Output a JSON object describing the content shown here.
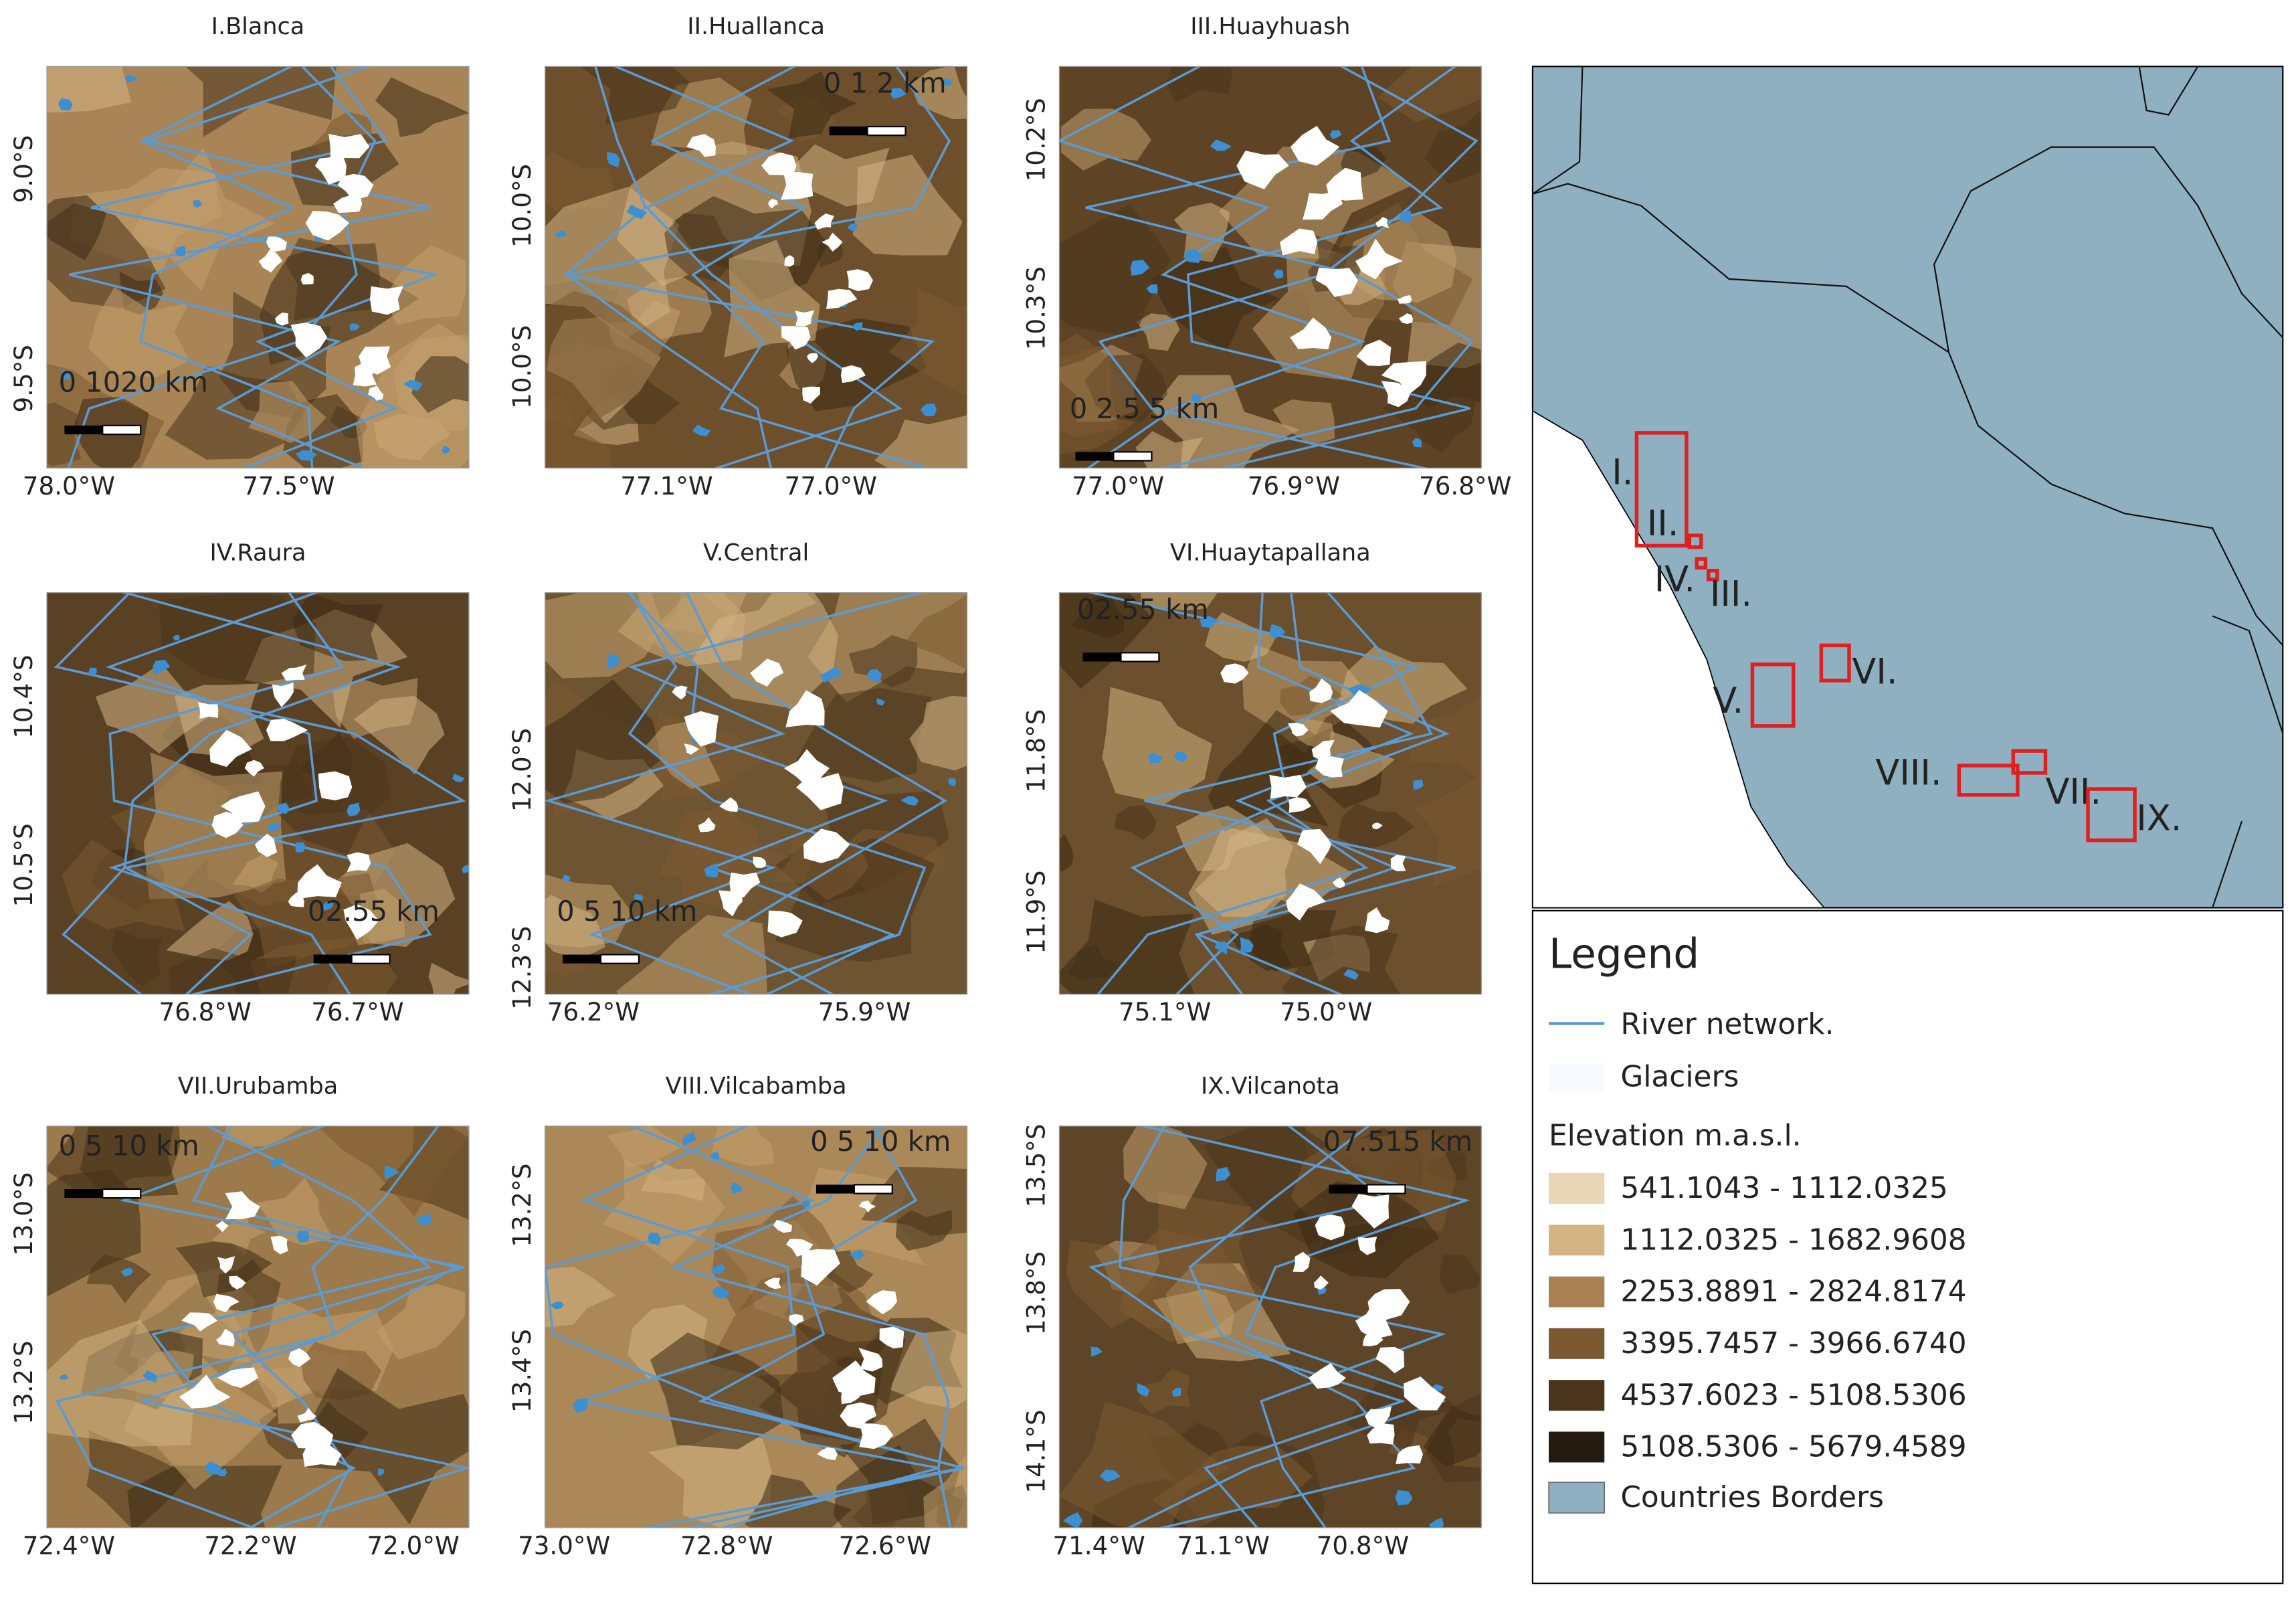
{
  "panels": [
    {
      "title": "I.Blanca",
      "lat_labels": [
        "9.0°S",
        "9.5°S"
      ],
      "lon_labels": [
        "78.0°W",
        "77.5°W"
      ],
      "scale_bar": "0 1020 km"
    },
    {
      "title": "II.Huallanca",
      "lat_labels": [
        "10.0°S",
        "10.0°S"
      ],
      "lon_labels": [
        "77.1°W",
        "77.0°W"
      ],
      "scale_bar": "0 1 2 km"
    },
    {
      "title": "III.Huayhuash",
      "lat_labels": [
        "10.2°S",
        "10.3°S"
      ],
      "lon_labels": [
        "77.0°W",
        "76.9°W",
        "76.8°W"
      ],
      "scale_bar": "0 2.5 5 km"
    },
    {
      "title": "IV.Raura",
      "lat_labels": [
        "10.4°S",
        "10.5°S"
      ],
      "lon_labels": [
        "76.8°W",
        "76.7°W"
      ],
      "scale_bar": "02.55 km"
    },
    {
      "title": "V.Central",
      "lat_labels": [
        "12.0°S",
        "12.3°S"
      ],
      "lon_labels": [
        "76.2°W",
        "75.9°W"
      ],
      "scale_bar": "0  5 10 km"
    },
    {
      "title": "VI.Huaytapallana",
      "lat_labels": [
        "11.8°S",
        "11.9°S"
      ],
      "lon_labels": [
        "75.1°W",
        "75.0°W"
      ],
      "scale_bar": "02.55 km"
    },
    {
      "title": "VII.Urubamba",
      "lat_labels": [
        "13.0°S",
        "13.2°S"
      ],
      "lon_labels": [
        "72.4°W",
        "72.2°W",
        "72.0°W"
      ],
      "scale_bar": "0  5 10 km"
    },
    {
      "title": "VIII.Vilcabamba",
      "lat_labels": [
        "13.2°S",
        "13.4°S"
      ],
      "lon_labels": [
        "73.0°W",
        "72.8°W",
        "72.6°W"
      ],
      "scale_bar": "0  5 10 km"
    },
    {
      "title": "IX.Vilcanota",
      "lat_labels": [
        "13.5°S",
        "13.8°S",
        "14.1°S"
      ],
      "lon_labels": [
        "71.4°W",
        "71.1°W",
        "70.8°W"
      ],
      "scale_bar": "07.515 km"
    }
  ],
  "overview": {
    "region_labels": [
      "I.",
      "II.",
      "IV.",
      "III.",
      "VI.",
      "V.",
      "VIII.",
      "VII.",
      "IX."
    ]
  },
  "legend": {
    "title": "Legend",
    "river": {
      "label": "River network.",
      "color": "#5b9bd5"
    },
    "glaciers": {
      "label": "Glaciers",
      "color": "#f7fbff"
    },
    "elevation_title": "Elevation m.a.s.l.",
    "elevation_classes": [
      {
        "label": "541.1043 - 1112.0325",
        "color": "#e9d6b6"
      },
      {
        "label": "1112.0325 - 1682.9608",
        "color": "#d3b483"
      },
      {
        "label": "2253.8891 - 2824.8174",
        "color": "#a98253"
      },
      {
        "label": "3395.7457 - 3966.6740",
        "color": "#7b5932"
      },
      {
        "label": "4537.6023 - 5108.5306",
        "color": "#4a341b"
      },
      {
        "label": "5108.5306 - 5679.4589",
        "color": "#241a0f"
      }
    ],
    "countries": {
      "label": "Countries Borders",
      "color": "#8fb0c0"
    }
  }
}
